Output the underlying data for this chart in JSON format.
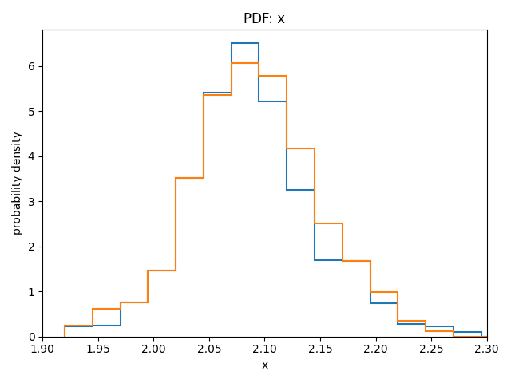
{
  "title": "PDF: x",
  "xlabel": "x",
  "ylabel": "probability density",
  "xlim": [
    1.9,
    2.3
  ],
  "ylim": [
    0,
    6.8
  ],
  "color_blue": "#1f77b4",
  "color_orange": "#ff7f0e",
  "blue_bins": [
    1.92,
    1.945,
    1.97,
    1.995,
    2.02,
    2.045,
    2.07,
    2.095,
    2.12,
    2.145,
    2.17,
    2.195,
    2.22,
    2.245,
    2.27,
    2.295,
    2.32
  ],
  "blue_heights": [
    0.22,
    0.25,
    0.75,
    1.47,
    3.52,
    5.4,
    6.5,
    5.22,
    3.25,
    1.7,
    1.68,
    0.73,
    0.27,
    0.22,
    0.1,
    0.0
  ],
  "orange_bins": [
    1.92,
    1.945,
    1.97,
    1.995,
    2.02,
    2.045,
    2.07,
    2.095,
    2.12,
    2.145,
    2.17,
    2.195,
    2.22,
    2.245,
    2.27,
    2.295,
    2.32
  ],
  "orange_heights": [
    0.25,
    0.62,
    0.75,
    1.47,
    3.52,
    5.35,
    6.07,
    5.78,
    4.17,
    2.5,
    1.68,
    0.98,
    0.35,
    0.12,
    0.0,
    0.0
  ]
}
